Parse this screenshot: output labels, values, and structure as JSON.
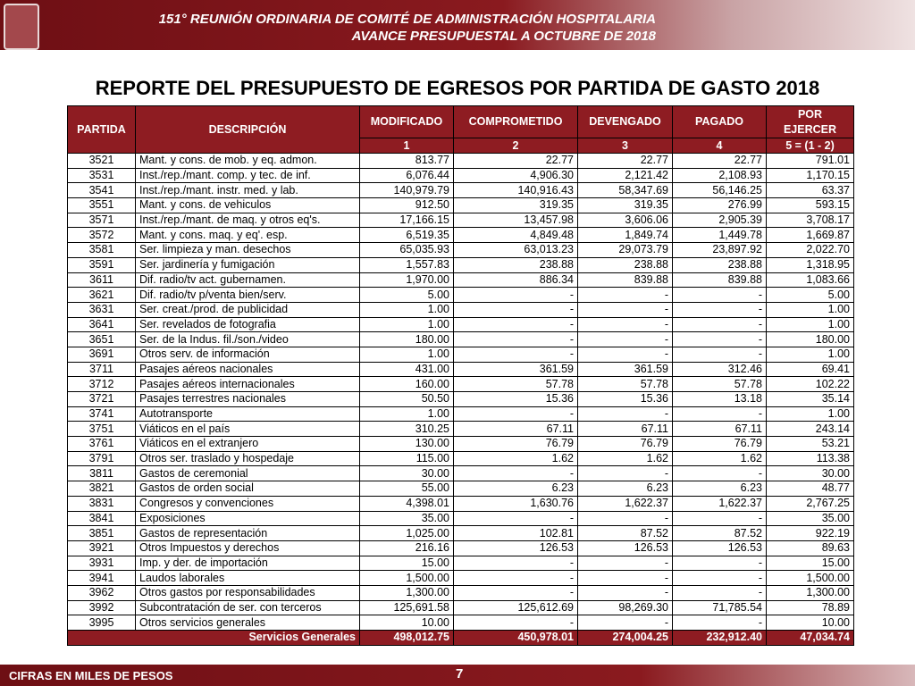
{
  "header": {
    "line1": "151° REUNIÓN ORDINARIA DE COMITÉ DE ADMINISTRACIÓN HOSPITALARIA",
    "line2": "AVANCE PRESUPUESTAL A  OCTUBRE DE 2018"
  },
  "title": "REPORTE DEL PRESUPUESTO DE EGRESOS POR PARTIDA DE GASTO 2018",
  "table": {
    "columns": [
      "PARTIDA",
      "DESCRIPCIÓN",
      "MODIFICADO",
      "COMPROMETIDO",
      "DEVENGADO",
      "PAGADO",
      "POR EJERCER"
    ],
    "subheader": [
      "1",
      "2",
      "3",
      "4",
      "5 = (1 - 2)"
    ],
    "rows": [
      [
        "3521",
        "Mant. y cons. de mob. y eq. admon.",
        "813.77",
        "22.77",
        "22.77",
        "22.77",
        "791.01"
      ],
      [
        "3531",
        "Inst./rep./mant. comp. y tec. de inf.",
        "6,076.44",
        "4,906.30",
        "2,121.42",
        "2,108.93",
        "1,170.15"
      ],
      [
        "3541",
        "Inst./rep./mant. instr. med. y lab.",
        "140,979.79",
        "140,916.43",
        "58,347.69",
        "56,146.25",
        "63.37"
      ],
      [
        "3551",
        "Mant. y cons. de vehiculos",
        "912.50",
        "319.35",
        "319.35",
        "276.99",
        "593.15"
      ],
      [
        "3571",
        "Inst./rep./mant. de maq. y otros eq's.",
        "17,166.15",
        "13,457.98",
        "3,606.06",
        "2,905.39",
        "3,708.17"
      ],
      [
        "3572",
        "Mant. y cons. maq. y eq'. esp.",
        "6,519.35",
        "4,849.48",
        "1,849.74",
        "1,449.78",
        "1,669.87"
      ],
      [
        "3581",
        "Ser. limpieza y man. desechos",
        "65,035.93",
        "63,013.23",
        "29,073.79",
        "23,897.92",
        "2,022.70"
      ],
      [
        "3591",
        "Ser. jardinería y fumigación",
        "1,557.83",
        "238.88",
        "238.88",
        "238.88",
        "1,318.95"
      ],
      [
        "3611",
        "Dif. radio/tv act. gubernamen.",
        "1,970.00",
        "886.34",
        "839.88",
        "839.88",
        "1,083.66"
      ],
      [
        "3621",
        "Dif. radio/tv p/venta bien/serv.",
        "5.00",
        "-",
        "-",
        "-",
        "5.00"
      ],
      [
        "3631",
        "Ser. creat./prod. de publicidad",
        "1.00",
        "-",
        "-",
        "-",
        "1.00"
      ],
      [
        "3641",
        "Ser. revelados de fotografia",
        "1.00",
        "-",
        "-",
        "-",
        "1.00"
      ],
      [
        "3651",
        "Ser. de la Indus. fil./son./video",
        "180.00",
        "-",
        "-",
        "-",
        "180.00"
      ],
      [
        "3691",
        "Otros serv. de información",
        "1.00",
        "-",
        "-",
        "-",
        "1.00"
      ],
      [
        "3711",
        "Pasajes aéreos nacionales",
        "431.00",
        "361.59",
        "361.59",
        "312.46",
        "69.41"
      ],
      [
        "3712",
        "Pasajes aéreos internacionales",
        "160.00",
        "57.78",
        "57.78",
        "57.78",
        "102.22"
      ],
      [
        "3721",
        "Pasajes terrestres nacionales",
        "50.50",
        "15.36",
        "15.36",
        "13.18",
        "35.14"
      ],
      [
        "3741",
        "Autotransporte",
        "1.00",
        "-",
        "-",
        "-",
        "1.00"
      ],
      [
        "3751",
        "Viáticos en el país",
        "310.25",
        "67.11",
        "67.11",
        "67.11",
        "243.14"
      ],
      [
        "3761",
        "Viáticos en el extranjero",
        "130.00",
        "76.79",
        "76.79",
        "76.79",
        "53.21"
      ],
      [
        "3791",
        "Otros ser. traslado y hospedaje",
        "115.00",
        "1.62",
        "1.62",
        "1.62",
        "113.38"
      ],
      [
        "3811",
        "Gastos de ceremonial",
        "30.00",
        "-",
        "-",
        "-",
        "30.00"
      ],
      [
        "3821",
        "Gastos de orden social",
        "55.00",
        "6.23",
        "6.23",
        "6.23",
        "48.77"
      ],
      [
        "3831",
        "Congresos y convenciones",
        "4,398.01",
        "1,630.76",
        "1,622.37",
        "1,622.37",
        "2,767.25"
      ],
      [
        "3841",
        "Exposiciones",
        "35.00",
        "-",
        "-",
        "-",
        "35.00"
      ],
      [
        "3851",
        "Gastos de representación",
        "1,025.00",
        "102.81",
        "87.52",
        "87.52",
        "922.19"
      ],
      [
        "3921",
        "Otros Impuestos y derechos",
        "216.16",
        "126.53",
        "126.53",
        "126.53",
        "89.63"
      ],
      [
        "3931",
        "Imp. y der. de importación",
        "15.00",
        "-",
        "-",
        "-",
        "15.00"
      ],
      [
        "3941",
        "Laudos laborales",
        "1,500.00",
        "-",
        "-",
        "-",
        "1,500.00"
      ],
      [
        "3962",
        "Otros gastos por responsabilidades",
        "1,300.00",
        "-",
        "-",
        "-",
        "1,300.00"
      ],
      [
        "3992",
        "Subcontratación de ser. con terceros",
        "125,691.58",
        "125,612.69",
        "98,269.30",
        "71,785.54",
        "78.89"
      ],
      [
        "3995",
        "Otros servicios generales",
        "10.00",
        "-",
        "-",
        "-",
        "10.00"
      ]
    ],
    "total": [
      "Servicios Generales",
      "498,012.75",
      "450,978.01",
      "274,004.25",
      "232,912.40",
      "47,034.74"
    ]
  },
  "footer": {
    "note": "CIFRAS EN MILES DE PESOS",
    "page": "7"
  }
}
